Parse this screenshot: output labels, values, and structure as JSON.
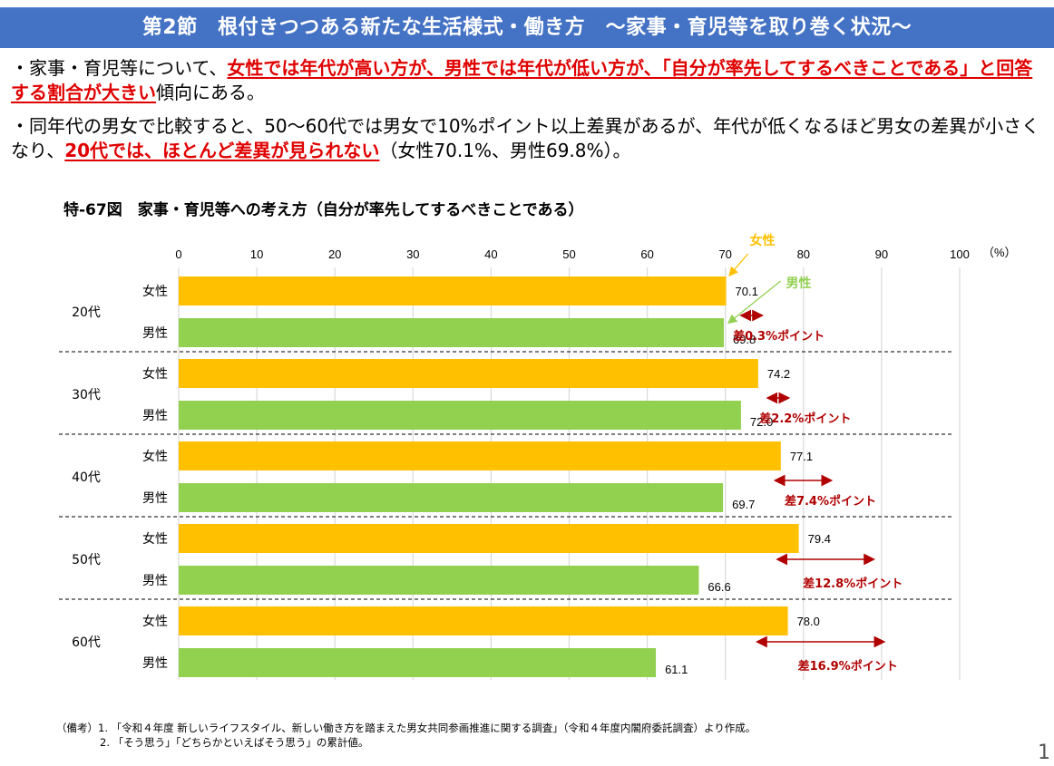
{
  "header": {
    "title": "第2節　根付きつつある新たな生活様式・働き方　～家事・育児等を取り巻く状況～"
  },
  "bullets": [
    {
      "prefix": "・家事・育児等について、",
      "highlight": "女性では年代が高い方が、男性では年代が低い方が、「自分が率先してするべきことである」と回答する割合が大きい",
      "suffix": "傾向にある。"
    },
    {
      "prefix": "・同年代の男女で比較すると、50～60代では男女で10%ポイント以上差異があるが、年代が低くなるほど男女の差異が小さくなり、",
      "highlight": "20代では、ほとんど差異が見られない",
      "suffix": "（女性70.1%、男性69.8%）。"
    }
  ],
  "figure": {
    "title": "特-67図　家事・育児等への考え方（自分が率先してするべきことである）"
  },
  "colors": {
    "female": "#ffc000",
    "male": "#92d050",
    "diff": "#b00000",
    "header": "#4472c4",
    "highlight": "#e00000"
  },
  "chart_data": {
    "type": "bar",
    "orientation": "horizontal",
    "title": "特-67図　家事・育児等への考え方（自分が率先してするべきことである）",
    "xlabel": "",
    "unit_label": "（%）",
    "xlim": [
      0,
      100
    ],
    "xticks": [
      0,
      10,
      20,
      30,
      40,
      50,
      60,
      70,
      80,
      90,
      100
    ],
    "grid": true,
    "categories": [
      "20代",
      "30代",
      "40代",
      "50代",
      "60代"
    ],
    "series": [
      {
        "name": "女性",
        "values": [
          70.1,
          74.2,
          77.1,
          79.4,
          78.0
        ]
      },
      {
        "name": "男性",
        "values": [
          69.8,
          72.0,
          69.7,
          66.6,
          61.1
        ]
      }
    ],
    "value_labels": {
      "女性": [
        "70.1",
        "74.2",
        "77.1",
        "79.4",
        "78.0"
      ],
      "男性": [
        "69.8",
        "72.0",
        "69.7",
        "66.6",
        "61.1"
      ]
    },
    "annotations": [
      "差0.3%ポイント",
      "差2.2%ポイント",
      "差7.4%ポイント",
      "差12.8%ポイント",
      "差16.9%ポイント"
    ],
    "legend": {
      "placement": "inline-callouts",
      "female_label": "女性",
      "male_label": "男性"
    }
  },
  "notes": [
    "（備考）1. 「令和４年度 新しいライフスタイル、新しい働き方を踏まえた男女共同参画推進に関する調査」（令和４年度内閣府委託調査）より作成。",
    "2. 「そう思う」「どちらかといえばそう思う」の累計値。"
  ],
  "page_number": "1"
}
